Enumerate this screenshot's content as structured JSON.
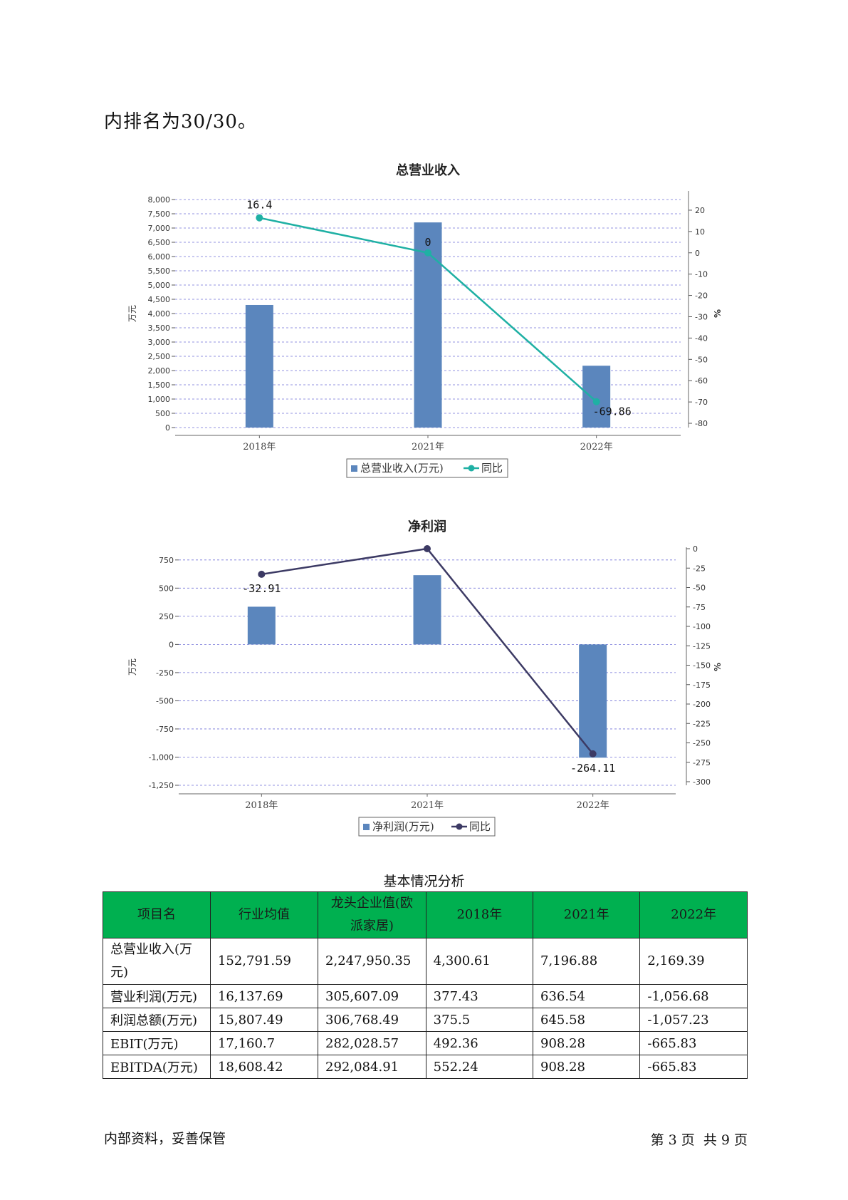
{
  "intro_text": "内排名为30/30。",
  "chart_data": [
    {
      "type": "bar",
      "title": "总营业收入",
      "categories": [
        "2018年",
        "2021年",
        "2022年"
      ],
      "series": [
        {
          "name": "总营业收入(万元)",
          "axis": "left",
          "values": [
            4300.61,
            7196.88,
            2169.39
          ],
          "color": "#5b86bd"
        },
        {
          "name": "同比",
          "axis": "right",
          "chart": "line",
          "values": [
            16.4,
            0,
            -69.86
          ],
          "labels": [
            "16.4",
            "0",
            "-69.86"
          ],
          "color": "#1fb0a4"
        }
      ],
      "ylabel": "万元",
      "y2label": "%",
      "ylim": [
        0,
        8000
      ],
      "yticks": [
        0,
        500,
        1000,
        1500,
        2000,
        2500,
        3000,
        3500,
        4000,
        4500,
        5000,
        5500,
        6000,
        6500,
        7000,
        7500,
        8000
      ],
      "ytick_labels": [
        "0",
        "500",
        "1,000",
        "1,500",
        "2,000",
        "2,500",
        "3,000",
        "3,500",
        "4,000",
        "4,500",
        "5,000",
        "5,500",
        "6,000",
        "6,500",
        "7,000",
        "7,500",
        "8,000"
      ],
      "y2lim": [
        -82,
        25
      ],
      "y2ticks": [
        20,
        10,
        0,
        -10,
        -20,
        -30,
        -40,
        -50,
        -60,
        -70,
        -80
      ],
      "y2tick_labels": [
        "20",
        "10",
        "0",
        "-10",
        "-20",
        "-30",
        "-40",
        "-50",
        "-60",
        "-70",
        "-80"
      ],
      "grid": true,
      "legend": "bottom"
    },
    {
      "type": "bar",
      "title": "净利润",
      "categories": [
        "2018年",
        "2021年",
        "2022年"
      ],
      "series": [
        {
          "name": "净利润(万元)",
          "axis": "left",
          "values": [
            335,
            615,
            -1005
          ],
          "color": "#5b86bd"
        },
        {
          "name": "同比",
          "axis": "right",
          "chart": "line",
          "values": [
            -32.91,
            0,
            -264.11
          ],
          "labels": [
            "-32.91",
            "",
            "-264.11"
          ],
          "color": "#3c3a64"
        }
      ],
      "ylabel": "万元",
      "y2label": "%",
      "ylim": [
        -1250,
        850
      ],
      "yticks": [
        750,
        500,
        250,
        0,
        -250,
        -500,
        -750,
        -1000,
        -1250
      ],
      "ytick_labels": [
        "750",
        "500",
        "250",
        "0",
        "-250",
        "-500",
        "-750",
        "-1,000",
        "-1,250"
      ],
      "y2lim": [
        -300,
        0
      ],
      "y2ticks": [
        0,
        -25,
        -50,
        -75,
        -100,
        -125,
        -150,
        -175,
        -200,
        -225,
        -250,
        -275,
        -300
      ],
      "y2tick_labels": [
        "0",
        "-25",
        "-50",
        "-75",
        "-100",
        "-125",
        "-150",
        "-175",
        "-200",
        "-225",
        "-250",
        "-275",
        "-300"
      ],
      "grid": true,
      "legend": "bottom"
    }
  ],
  "table": {
    "title": "基本情况分析",
    "headers": [
      "项目名",
      "行业均值",
      "龙头企业值(欧派家居)",
      "2018年",
      "2021年",
      "2022年"
    ],
    "rows": [
      [
        "总营业收入(万元)",
        "152,791.59",
        "2,247,950.35",
        "4,300.61",
        "7,196.88",
        "2,169.39"
      ],
      [
        "营业利润(万元)",
        "16,137.69",
        "305,607.09",
        "377.43",
        "636.54",
        "-1,056.68"
      ],
      [
        "利润总额(万元)",
        "15,807.49",
        "306,768.49",
        "375.5",
        "645.58",
        "-1,057.23"
      ],
      [
        "EBIT(万元)",
        "17,160.7",
        "282,028.57",
        "492.36",
        "908.28",
        "-665.83"
      ],
      [
        "EBITDA(万元)",
        "18,608.42",
        "292,084.91",
        "552.24",
        "908.28",
        "-665.83"
      ]
    ]
  },
  "footer": {
    "left": "内部资料，妥善保管",
    "right": "第 3 页  共 9 页"
  }
}
